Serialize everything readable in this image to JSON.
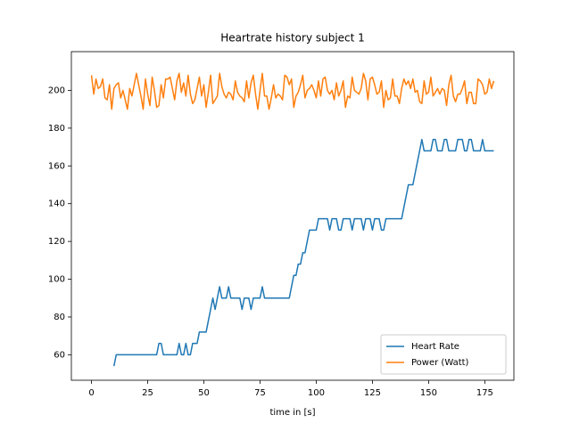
{
  "chart_data": {
    "type": "line",
    "title": "Heartrate history subject 1",
    "x_label": "time in [s]",
    "x": [
      0,
      1,
      2,
      3,
      4,
      5,
      6,
      7,
      8,
      9,
      10,
      11,
      12,
      13,
      14,
      15,
      16,
      17,
      18,
      19,
      20,
      21,
      22,
      23,
      24,
      25,
      26,
      27,
      28,
      29,
      30,
      31,
      32,
      33,
      34,
      35,
      36,
      37,
      38,
      39,
      40,
      41,
      42,
      43,
      44,
      45,
      46,
      47,
      48,
      49,
      50,
      51,
      52,
      53,
      54,
      55,
      56,
      57,
      58,
      59,
      60,
      61,
      62,
      63,
      64,
      65,
      66,
      67,
      68,
      69,
      70,
      71,
      72,
      73,
      74,
      75,
      76,
      77,
      78,
      79,
      80,
      81,
      82,
      83,
      84,
      85,
      86,
      87,
      88,
      89,
      90,
      91,
      92,
      93,
      94,
      95,
      96,
      97,
      98,
      99,
      100,
      101,
      102,
      103,
      104,
      105,
      106,
      107,
      108,
      109,
      110,
      111,
      112,
      113,
      114,
      115,
      116,
      117,
      118,
      119,
      120,
      121,
      122,
      123,
      124,
      125,
      126,
      127,
      128,
      129,
      130,
      131,
      132,
      133,
      134,
      135,
      136,
      137,
      138,
      139,
      140,
      141,
      142,
      143,
      144,
      145,
      146,
      147,
      148,
      149,
      150,
      151,
      152,
      153,
      154,
      155,
      156,
      157,
      158,
      159,
      160,
      161,
      162,
      163,
      164,
      165,
      166,
      167,
      168,
      169,
      170,
      171,
      172,
      173,
      174,
      175,
      176,
      177,
      178,
      179
    ],
    "series": [
      {
        "name": "Heart Rate",
        "color": "#1f77b4",
        "values": [
          null,
          null,
          null,
          null,
          null,
          null,
          null,
          null,
          null,
          null,
          54,
          60,
          60,
          60,
          60,
          60,
          60,
          60,
          60,
          60,
          60,
          60,
          60,
          60,
          60,
          60,
          60,
          60,
          60,
          60,
          66,
          66,
          60,
          60,
          60,
          60,
          60,
          60,
          60,
          66,
          60,
          60,
          66,
          60,
          60,
          66,
          66,
          66,
          72,
          72,
          72,
          72,
          78,
          84,
          90,
          84,
          90,
          96,
          90,
          90,
          90,
          96,
          90,
          90,
          90,
          90,
          90,
          84,
          90,
          90,
          90,
          84,
          90,
          90,
          90,
          90,
          96,
          90,
          90,
          90,
          90,
          90,
          90,
          90,
          90,
          90,
          90,
          90,
          90,
          96,
          102,
          102,
          108,
          108,
          114,
          114,
          120,
          126,
          126,
          126,
          126,
          132,
          132,
          132,
          132,
          132,
          126,
          132,
          132,
          132,
          126,
          126,
          132,
          132,
          132,
          132,
          126,
          132,
          132,
          132,
          132,
          126,
          132,
          132,
          132,
          126,
          132,
          132,
          132,
          126,
          126,
          132,
          132,
          132,
          132,
          132,
          132,
          132,
          132,
          138,
          144,
          150,
          150,
          150,
          156,
          162,
          168,
          174,
          168,
          168,
          168,
          168,
          174,
          174,
          168,
          168,
          168,
          174,
          174,
          168,
          168,
          168,
          168,
          174,
          174,
          174,
          168,
          168,
          174,
          174,
          168,
          168,
          168,
          168,
          174,
          168,
          168,
          168,
          168,
          168
        ]
      },
      {
        "name": "Power (Watt)",
        "color": "#ff7f0e",
        "values": [
          208,
          198,
          206,
          201,
          202,
          206,
          196,
          195,
          203,
          190,
          201,
          203,
          204,
          196,
          200,
          195,
          190,
          201,
          197,
          203,
          209,
          203,
          197,
          190,
          206,
          198,
          192,
          207,
          200,
          191,
          192,
          203,
          196,
          206,
          206,
          207,
          201,
          195,
          205,
          209,
          199,
          204,
          197,
          208,
          198,
          193,
          195,
          201,
          207,
          197,
          203,
          191,
          199,
          208,
          193,
          195,
          197,
          209,
          202,
          198,
          196,
          199,
          198,
          195,
          205,
          199,
          197,
          196,
          194,
          205,
          196,
          204,
          208,
          198,
          190,
          200,
          209,
          197,
          197,
          190,
          196,
          203,
          196,
          198,
          197,
          195,
          208,
          207,
          203,
          206,
          191,
          197,
          199,
          203,
          208,
          196,
          200,
          201,
          203,
          200,
          196,
          205,
          197,
          206,
          207,
          200,
          198,
          200,
          195,
          204,
          197,
          200,
          205,
          191,
          197,
          196,
          207,
          200,
          199,
          198,
          201,
          209,
          205,
          195,
          206,
          207,
          203,
          198,
          199,
          205,
          191,
          200,
          195,
          196,
          206,
          197,
          197,
          193,
          201,
          206,
          203,
          205,
          201,
          206,
          199,
          200,
          194,
          193,
          205,
          198,
          199,
          207,
          197,
          199,
          201,
          198,
          201,
          200,
          192,
          203,
          208,
          197,
          194,
          198,
          198,
          201,
          205,
          193,
          199,
          199,
          193,
          193,
          206,
          205,
          203,
          198,
          199,
          206,
          201,
          205
        ]
      }
    ],
    "xlim": [
      -8.95,
      187.95
    ],
    "xticks": [
      0,
      25,
      50,
      75,
      100,
      125,
      150,
      175
    ],
    "ylim": [
      46.5,
      220.5
    ],
    "yticks": [
      60,
      80,
      100,
      120,
      140,
      160,
      180,
      200
    ],
    "legend": "lower right"
  }
}
